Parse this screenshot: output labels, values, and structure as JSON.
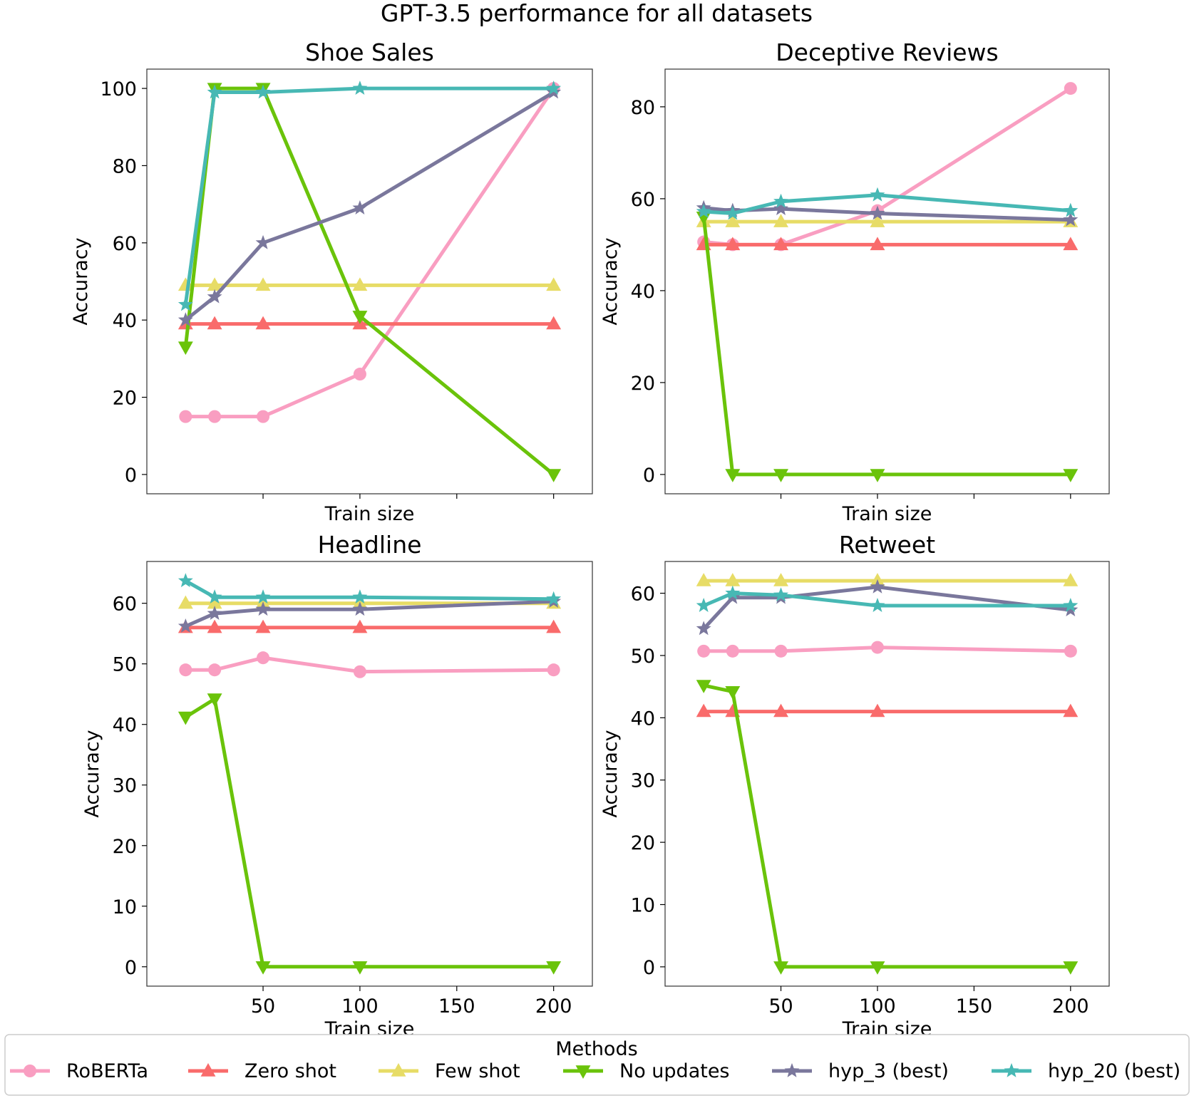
{
  "figure": {
    "suptitle": "GPT-3.5 performance for all datasets"
  },
  "legend": {
    "title": "Methods",
    "placement": "bottom-center"
  },
  "series_styles": [
    {
      "key": "roberta",
      "name": "RoBERTa",
      "color": "#f99ec1",
      "marker": "circle"
    },
    {
      "key": "zero_shot",
      "name": "Zero shot",
      "color": "#f96b6b",
      "marker": "triangle-up"
    },
    {
      "key": "few_shot",
      "name": "Few shot",
      "color": "#e7dc66",
      "marker": "triangle-up"
    },
    {
      "key": "no_updates",
      "name": "No updates",
      "color": "#6ac30a",
      "marker": "triangle-down"
    },
    {
      "key": "hyp3",
      "name": "hyp_3 (best)",
      "color": "#7a779c",
      "marker": "star"
    },
    {
      "key": "hyp20",
      "name": "hyp_20 (best)",
      "color": "#47b8b4",
      "marker": "star"
    }
  ],
  "chart_data": [
    {
      "type": "line",
      "title": "Shoe Sales",
      "xlabel": "Train size",
      "ylabel": "Accuracy",
      "x": [
        10,
        25,
        50,
        100,
        200
      ],
      "xlim": [
        -10,
        220
      ],
      "ylim": [
        -5,
        105
      ],
      "xticks": [
        50,
        100,
        150,
        200
      ],
      "yticks": [
        0,
        20,
        40,
        60,
        80,
        100
      ],
      "show_xtick_labels": false,
      "series": [
        {
          "name": "RoBERTa",
          "values": [
            15,
            15,
            15,
            26,
            100
          ]
        },
        {
          "name": "Zero shot",
          "values": [
            39,
            39,
            39,
            39,
            39
          ]
        },
        {
          "name": "Few shot",
          "values": [
            49,
            49,
            49,
            49,
            49
          ]
        },
        {
          "name": "No updates",
          "values": [
            33,
            100,
            100,
            41,
            0
          ]
        },
        {
          "name": "hyp_3 (best)",
          "values": [
            40,
            46,
            60,
            69,
            99
          ]
        },
        {
          "name": "hyp_20 (best)",
          "values": [
            44,
            99,
            99,
            100,
            100
          ]
        }
      ]
    },
    {
      "type": "line",
      "title": "Deceptive Reviews",
      "xlabel": "Train size",
      "ylabel": "Accuracy",
      "x": [
        10,
        25,
        50,
        100,
        200
      ],
      "xlim": [
        -10,
        220
      ],
      "ylim": [
        -4.2,
        88.2
      ],
      "xticks": [
        50,
        100,
        150,
        200
      ],
      "yticks": [
        0,
        20,
        40,
        60,
        80
      ],
      "show_xtick_labels": false,
      "series": [
        {
          "name": "RoBERTa",
          "values": [
            50.6,
            50,
            50,
            57.4,
            84
          ]
        },
        {
          "name": "Zero shot",
          "values": [
            50,
            50,
            50,
            50,
            50
          ]
        },
        {
          "name": "Few shot",
          "values": [
            55,
            55,
            55,
            55,
            55
          ]
        },
        {
          "name": "No updates",
          "values": [
            56,
            0,
            0,
            0,
            0
          ]
        },
        {
          "name": "hyp_3 (best)",
          "values": [
            58,
            57.4,
            57.8,
            56.8,
            55.4
          ]
        },
        {
          "name": "hyp_20 (best)",
          "values": [
            57.2,
            56.8,
            59.4,
            60.8,
            57.4
          ]
        }
      ]
    },
    {
      "type": "line",
      "title": "Headline",
      "xlabel": "Train size",
      "ylabel": "Accuracy",
      "x": [
        10,
        25,
        50,
        100,
        200
      ],
      "xlim": [
        -10,
        220
      ],
      "ylim": [
        -3.2,
        66.9
      ],
      "xticks": [
        50,
        100,
        150,
        200
      ],
      "yticks": [
        0,
        10,
        20,
        30,
        40,
        50,
        60
      ],
      "show_xtick_labels": true,
      "series": [
        {
          "name": "RoBERTa",
          "values": [
            49,
            49,
            51,
            48.7,
            49
          ]
        },
        {
          "name": "Zero shot",
          "values": [
            56,
            56,
            56,
            56,
            56
          ]
        },
        {
          "name": "Few shot",
          "values": [
            60,
            60,
            60,
            60,
            60
          ]
        },
        {
          "name": "No updates",
          "values": [
            41.2,
            44.2,
            0,
            0,
            0
          ]
        },
        {
          "name": "hyp_3 (best)",
          "values": [
            56.2,
            58.3,
            59,
            59,
            60.3
          ]
        },
        {
          "name": "hyp_20 (best)",
          "values": [
            63.7,
            61,
            61,
            61,
            60.7
          ]
        }
      ]
    },
    {
      "type": "line",
      "title": "Retweet",
      "xlabel": "Train size",
      "ylabel": "Accuracy",
      "x": [
        10,
        25,
        50,
        100,
        200
      ],
      "xlim": [
        -10,
        220
      ],
      "ylim": [
        -3.1,
        65.1
      ],
      "xticks": [
        50,
        100,
        150,
        200
      ],
      "yticks": [
        0,
        10,
        20,
        30,
        40,
        50,
        60
      ],
      "show_xtick_labels": true,
      "series": [
        {
          "name": "RoBERTa",
          "values": [
            50.7,
            50.7,
            50.7,
            51.3,
            50.7
          ]
        },
        {
          "name": "Zero shot",
          "values": [
            41,
            41,
            41,
            41,
            41
          ]
        },
        {
          "name": "Few shot",
          "values": [
            62,
            62,
            62,
            62,
            62
          ]
        },
        {
          "name": "No updates",
          "values": [
            45.2,
            44.2,
            0,
            0,
            0
          ]
        },
        {
          "name": "hyp_3 (best)",
          "values": [
            54.3,
            59.3,
            59.3,
            61,
            57.3
          ]
        },
        {
          "name": "hyp_20 (best)",
          "values": [
            58,
            60,
            59.7,
            58,
            58
          ]
        }
      ]
    }
  ]
}
